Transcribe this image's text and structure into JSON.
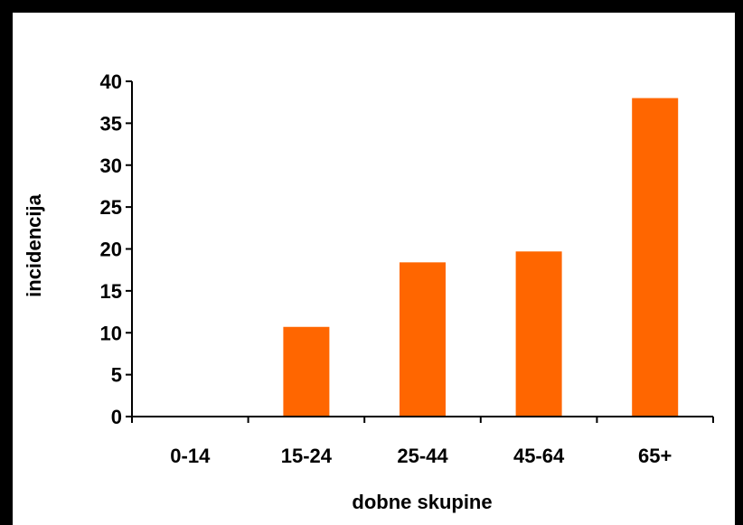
{
  "chart_data": {
    "type": "bar",
    "categories": [
      "0-14",
      "15-24",
      "25-44",
      "45-64",
      "65+"
    ],
    "values": [
      0,
      10.7,
      18.4,
      19.7,
      38
    ],
    "xlabel": "dobne skupine",
    "ylabel": "incidencija",
    "ylim": [
      0,
      40
    ],
    "yticks": [
      0,
      5,
      10,
      15,
      20,
      25,
      30,
      35,
      40
    ],
    "grid": false,
    "legend": "none",
    "bar_color": "#FF6600",
    "axis_color": "#000000",
    "background": "#FFFFFF",
    "border_color": "#000000"
  }
}
